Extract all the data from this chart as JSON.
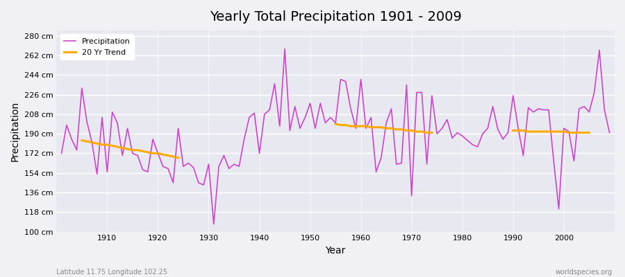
{
  "title": "Yearly Total Precipitation 1901 - 2009",
  "xlabel": "Year",
  "ylabel": "Precipitation",
  "subtitle_left": "Latitude 11.75 Longitude 102.25",
  "subtitle_right": "worldspecies.org",
  "line_color": "#cc44cc",
  "trend_color": "#ffaa00",
  "bg_color": "#f0f0f5",
  "plot_bg_color": "#e8e8f0",
  "ylim": [
    100,
    285
  ],
  "yticks": [
    100,
    118,
    136,
    154,
    172,
    190,
    208,
    226,
    244,
    262,
    280
  ],
  "ytick_labels": [
    "100 cm",
    "118 cm",
    "136 cm",
    "154 cm",
    "172 cm",
    "190 cm",
    "208 cm",
    "226 cm",
    "244 cm",
    "262 cm",
    "280 cm"
  ],
  "years": [
    1901,
    1902,
    1903,
    1904,
    1905,
    1906,
    1907,
    1908,
    1909,
    1910,
    1911,
    1912,
    1913,
    1914,
    1915,
    1916,
    1917,
    1918,
    1919,
    1920,
    1921,
    1922,
    1923,
    1924,
    1925,
    1926,
    1927,
    1928,
    1929,
    1930,
    1931,
    1932,
    1933,
    1934,
    1935,
    1936,
    1937,
    1938,
    1939,
    1940,
    1941,
    1942,
    1943,
    1944,
    1945,
    1946,
    1947,
    1948,
    1949,
    1950,
    1951,
    1952,
    1953,
    1954,
    1955,
    1956,
    1957,
    1958,
    1959,
    1960,
    1961,
    1962,
    1963,
    1964,
    1965,
    1966,
    1967,
    1968,
    1969,
    1970,
    1971,
    1972,
    1973,
    1974,
    1975,
    1976,
    1977,
    1978,
    1979,
    1980,
    1981,
    1982,
    1983,
    1984,
    1985,
    1986,
    1987,
    1988,
    1989,
    1990,
    1991,
    1992,
    1993,
    1994,
    1995,
    1996,
    1997,
    1998,
    1999,
    2000,
    2001,
    2002,
    2003,
    2004,
    2005,
    2006,
    2007,
    2008,
    2009
  ],
  "precip": [
    172,
    198,
    185,
    175,
    232,
    201,
    182,
    153,
    205,
    155,
    210,
    200,
    170,
    195,
    172,
    170,
    157,
    155,
    185,
    172,
    160,
    158,
    145,
    195,
    160,
    163,
    159,
    145,
    143,
    162,
    107,
    160,
    170,
    158,
    162,
    160,
    185,
    205,
    209,
    172,
    208,
    212,
    236,
    197,
    268,
    193,
    215,
    195,
    205,
    218,
    195,
    218,
    200,
    205,
    200,
    240,
    238,
    213,
    195,
    240,
    195,
    205,
    155,
    168,
    200,
    213,
    162,
    163,
    235,
    133,
    228,
    228,
    162,
    225,
    190,
    195,
    203,
    186,
    191,
    188,
    184,
    180,
    178,
    190,
    195,
    215,
    194,
    185,
    191,
    225,
    195,
    170,
    214,
    210,
    213,
    212,
    212,
    165,
    121,
    195,
    192,
    165,
    213,
    215,
    210,
    228,
    267,
    212,
    191
  ],
  "trend_segments": [
    {
      "years": [
        1905,
        1906,
        1907,
        1908,
        1909,
        1910,
        1911,
        1912,
        1913,
        1914,
        1915,
        1916,
        1917,
        1918,
        1919,
        1920,
        1921,
        1922,
        1923,
        1924
      ],
      "values": [
        184,
        183,
        182,
        181,
        180,
        180,
        179,
        178,
        177,
        176,
        175,
        175,
        174,
        173,
        172,
        172,
        171,
        170,
        169,
        168
      ]
    },
    {
      "years": [
        1955,
        1956,
        1957,
        1958,
        1959,
        1960,
        1961,
        1962,
        1963,
        1964,
        1965,
        1966,
        1967,
        1968,
        1969,
        1970,
        1971,
        1972,
        1973,
        1974
      ],
      "values": [
        199,
        198,
        198,
        197,
        197,
        197,
        197,
        196,
        196,
        196,
        195,
        195,
        194,
        194,
        193,
        193,
        192,
        192,
        191,
        191
      ]
    },
    {
      "years": [
        1990,
        1991,
        1992,
        1993,
        1994,
        1995,
        1996,
        1997,
        1998,
        1999,
        2000,
        2001,
        2002,
        2003,
        2004,
        2005
      ],
      "values": [
        193,
        193,
        193,
        192,
        192,
        192,
        192,
        192,
        192,
        192,
        192,
        191,
        191,
        191,
        191,
        191
      ]
    }
  ]
}
